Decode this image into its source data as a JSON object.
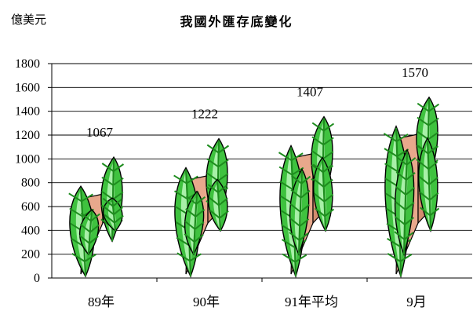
{
  "chart_data": {
    "type": "bar",
    "title": "我國外匯存底變化",
    "unit_label": "億美元",
    "categories": [
      "89年",
      "90年",
      "91年平均",
      "9月"
    ],
    "values": [
      1067,
      1222,
      1407,
      1570
    ],
    "ylim": [
      0,
      1800
    ],
    "yticks": [
      "0",
      "200",
      "400",
      "600",
      "800",
      "1000",
      "1200",
      "1400",
      "1600",
      "1800"
    ],
    "grid": true,
    "legend": "none",
    "colors": {
      "leaf_dark": "#1e8c1e",
      "leaf_mid": "#3fc23f",
      "leaf_light": "#a8f0a8",
      "note_face": "#e8a88c",
      "note_side": "#d28c6e",
      "axis": "#000000"
    }
  }
}
